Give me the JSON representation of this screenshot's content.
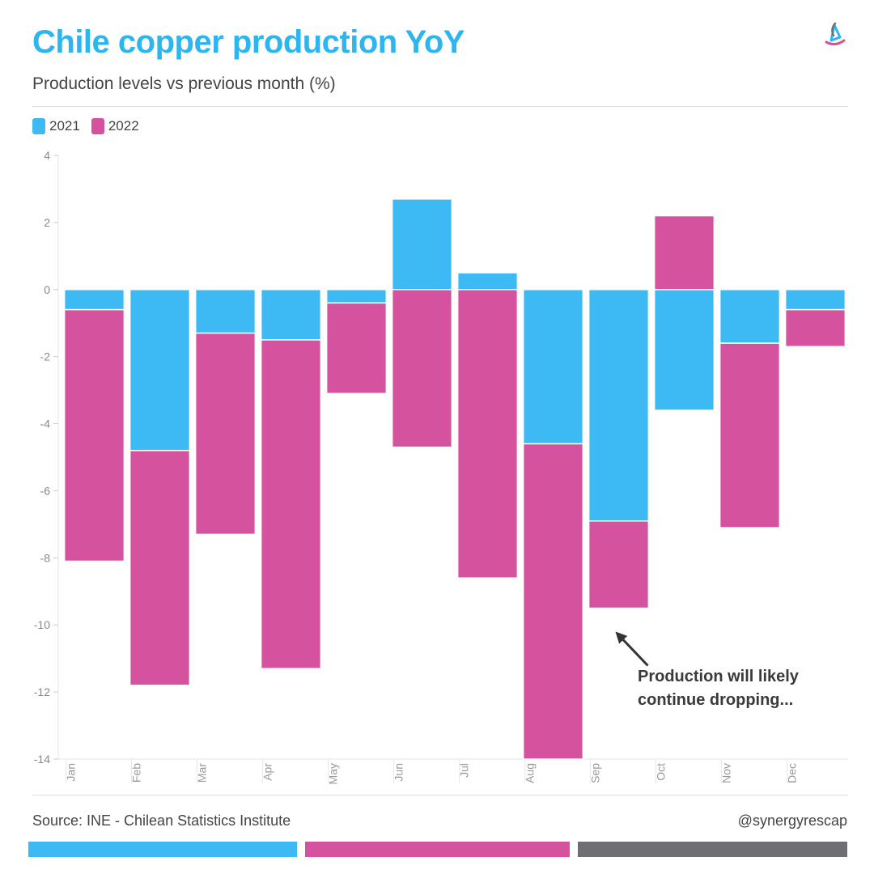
{
  "header": {
    "title": "Chile copper production YoY",
    "subtitle": "Production levels vs previous month (%)"
  },
  "footer": {
    "source": "Source: INE - Chilean Statistics Institute",
    "handle": "@synergyrescap"
  },
  "logo": {
    "icon": "synergy-logo-icon"
  },
  "colors": {
    "series_2021": "#3dbaf3",
    "series_2022": "#d4529e",
    "title": "#2cb5ef",
    "stripe_gray": "#6e6e73"
  },
  "chart_data": {
    "type": "bar",
    "stacked": true,
    "title": "Chile copper production YoY",
    "subtitle": "Production levels vs previous month (%)",
    "categories": [
      "Jan",
      "Feb",
      "Mar",
      "Apr",
      "May",
      "Jun",
      "Jul",
      "Aug",
      "Sep",
      "Oct",
      "Nov",
      "Dec"
    ],
    "series": [
      {
        "name": "2021",
        "color": "#3dbaf3",
        "values": [
          -0.6,
          -4.8,
          -1.3,
          -1.5,
          -0.4,
          2.7,
          0.5,
          -4.6,
          -6.9,
          -3.6,
          -1.6,
          -0.6
        ]
      },
      {
        "name": "2022",
        "color": "#d4529e",
        "values": [
          -7.5,
          -7.0,
          -6.0,
          -9.8,
          -2.7,
          -4.7,
          -8.6,
          -9.4,
          -2.6,
          2.2,
          -5.5,
          -1.1
        ]
      }
    ],
    "ylim": [
      -14,
      4
    ],
    "yticks": [
      4,
      2,
      0,
      -2,
      -4,
      -6,
      -8,
      -10,
      -12,
      -14
    ],
    "legend_position": "top-left",
    "grid": false,
    "annotation": {
      "line1": "Production will likely",
      "line2": "continue dropping...",
      "arrow_target": {
        "category": "Sep",
        "value": -10.2
      }
    }
  }
}
